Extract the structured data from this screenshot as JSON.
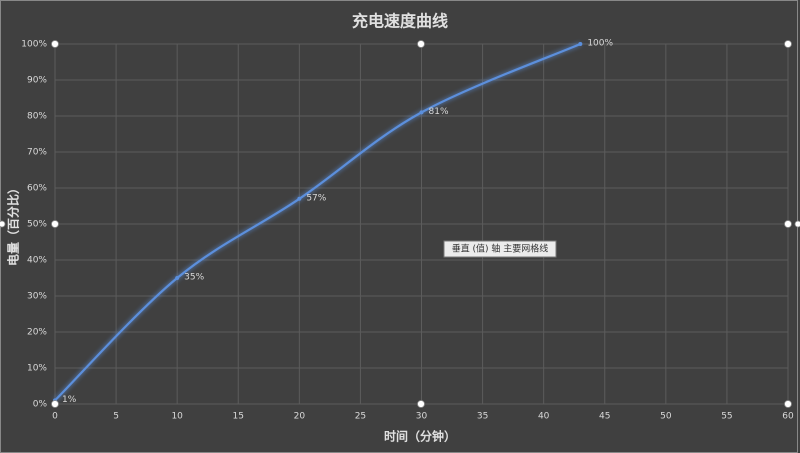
{
  "chart_data": {
    "type": "line",
    "title": "充电速度曲线",
    "x_label": "时间（分钟）",
    "y_label": "电量（百分比）",
    "x": [
      0,
      10,
      20,
      30,
      43
    ],
    "values": [
      1,
      35,
      57,
      81,
      100
    ],
    "value_labels": [
      "1%",
      "35%",
      "57%",
      "81%",
      "100%"
    ],
    "color": "#5b8fdc",
    "xlim": [
      0,
      60
    ],
    "xticks": [
      0,
      5,
      10,
      15,
      20,
      25,
      30,
      35,
      40,
      45,
      50,
      55,
      60
    ],
    "ylim": [
      0,
      100
    ],
    "yticks": [
      {
        "value": 0,
        "label": "0%"
      },
      {
        "value": 10,
        "label": "10%"
      },
      {
        "value": 20,
        "label": "20%"
      },
      {
        "value": 30,
        "label": "30%"
      },
      {
        "value": 40,
        "label": "40%"
      },
      {
        "value": 50,
        "label": "50%"
      },
      {
        "value": 60,
        "label": "60%"
      },
      {
        "value": 70,
        "label": "70%"
      },
      {
        "value": 80,
        "label": "80%"
      },
      {
        "value": 90,
        "label": "90%"
      },
      {
        "value": 100,
        "label": "100%"
      }
    ],
    "grid": true,
    "annotation": "垂直 (值) 轴 主要网格线"
  }
}
